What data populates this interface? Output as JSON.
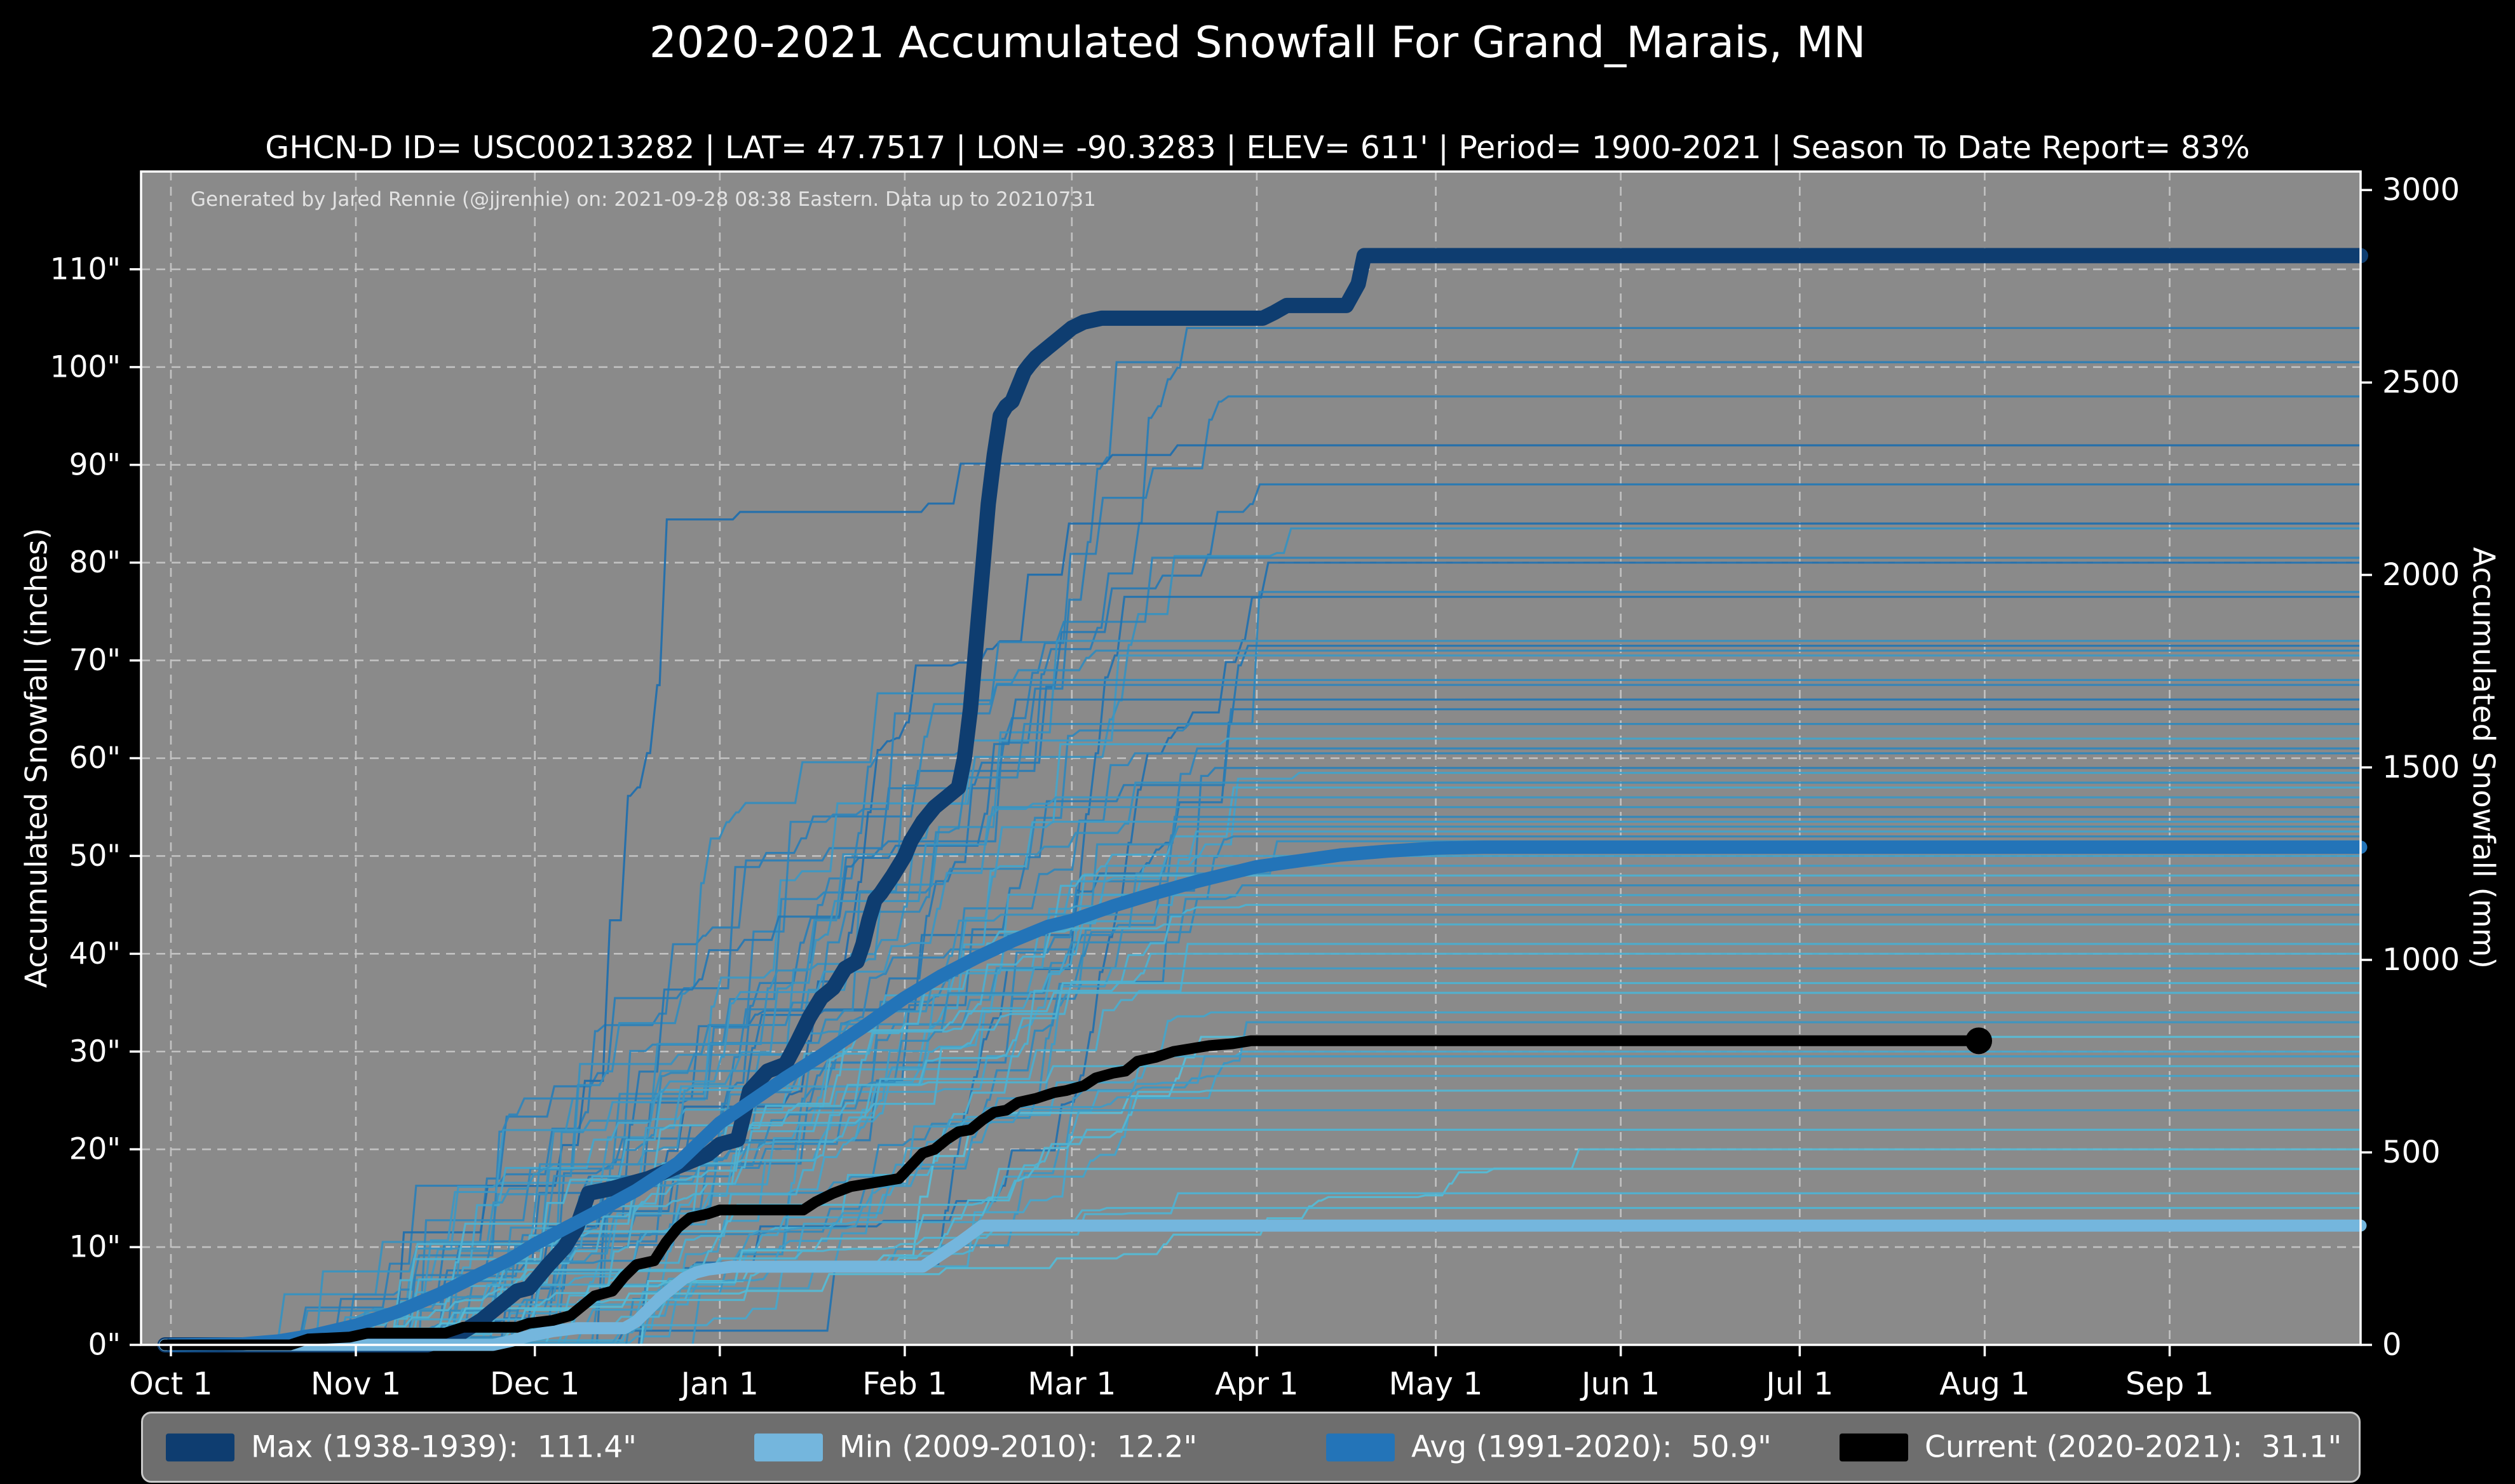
{
  "page": {
    "title": "2020-2021 Accumulated Snowfall For Grand_Marais, MN",
    "subtitle": "GHCN-D ID= USC00213282 | LAT= 47.7517 | LON= -90.3283 | ELEV= 611' | Period= 1900-2021 | Season To Date Report= 83%",
    "annotation": "Generated by Jared Rennie (@jjrennie) on: 2021-09-28 08:38 Eastern. Data up to 20210731"
  },
  "legend": {
    "position": "bottom",
    "items": [
      {
        "key": "max",
        "label": "Max (1938-1939):  111.4\"",
        "color": "#0e3d70"
      },
      {
        "key": "min",
        "label": "Min (2009-2010):  12.2\"",
        "color": "#74b6dd"
      },
      {
        "key": "avg",
        "label": "Avg (1991-2020):  50.9\"",
        "color": "#2374b8"
      },
      {
        "key": "current",
        "label": "Current (2020-2021):  31.1\"",
        "color": "#000000"
      }
    ]
  },
  "chart_data": {
    "type": "line",
    "title": "2020-2021 Accumulated Snowfall For Grand_Marais, MN",
    "xlabel": "",
    "ylabel_left": "Accumulated Snowfall (inches)",
    "ylabel_right": "Accumulated Snowfall (mm)",
    "grid": true,
    "colors": {
      "figure_bg": "#000000",
      "plot_bg": "#8a8a8a",
      "grid": "#c9c9c9",
      "spine": "#ffffff",
      "tick_text": "#ffffff"
    },
    "xlim_days": [
      -5,
      367
    ],
    "ylim_inches": [
      0,
      120
    ],
    "x_ticks": [
      {
        "label": "Oct 1",
        "day": 0
      },
      {
        "label": "Nov 1",
        "day": 31
      },
      {
        "label": "Dec 1",
        "day": 61
      },
      {
        "label": "Jan 1",
        "day": 92
      },
      {
        "label": "Feb 1",
        "day": 123
      },
      {
        "label": "Mar 1",
        "day": 151
      },
      {
        "label": "Apr 1",
        "day": 182
      },
      {
        "label": "May 1",
        "day": 212
      },
      {
        "label": "Jun 1",
        "day": 243
      },
      {
        "label": "Jul 1",
        "day": 273
      },
      {
        "label": "Aug 1",
        "day": 304
      },
      {
        "label": "Sep 1",
        "day": 335
      }
    ],
    "y_ticks_left": [
      {
        "v": 0,
        "label": "0\""
      },
      {
        "v": 10,
        "label": "10\""
      },
      {
        "v": 20,
        "label": "20\""
      },
      {
        "v": 30,
        "label": "30\""
      },
      {
        "v": 40,
        "label": "40\""
      },
      {
        "v": 50,
        "label": "50\""
      },
      {
        "v": 60,
        "label": "60\""
      },
      {
        "v": 70,
        "label": "70\""
      },
      {
        "v": 80,
        "label": "80\""
      },
      {
        "v": 90,
        "label": "90\""
      },
      {
        "v": 100,
        "label": "100\""
      },
      {
        "v": 110,
        "label": "110\""
      }
    ],
    "y_ticks_right": [
      {
        "mm": 0,
        "label": "0"
      },
      {
        "mm": 500,
        "label": "500"
      },
      {
        "mm": 1000,
        "label": "1000"
      },
      {
        "mm": 1500,
        "label": "1500"
      },
      {
        "mm": 2000,
        "label": "2000"
      },
      {
        "mm": 2500,
        "label": "2500"
      },
      {
        "mm": 3000,
        "label": "3000"
      }
    ],
    "series": [
      {
        "name": "Max (1938-1939)",
        "key": "max",
        "final_inches": 111.4,
        "color": "#0e3d70",
        "width": 24,
        "points": [
          [
            -1,
            0
          ],
          [
            43,
            0
          ],
          [
            45,
            0.4
          ],
          [
            48,
            1
          ],
          [
            52,
            2.5
          ],
          [
            55,
            4
          ],
          [
            58,
            5.5
          ],
          [
            60,
            5.8
          ],
          [
            63,
            8
          ],
          [
            66,
            10
          ],
          [
            68,
            12
          ],
          [
            70,
            15.5
          ],
          [
            74,
            16
          ],
          [
            80,
            17
          ],
          [
            86,
            18.5
          ],
          [
            90,
            19.5
          ],
          [
            92,
            20.5
          ],
          [
            95,
            21
          ],
          [
            97,
            26
          ],
          [
            100,
            28
          ],
          [
            103,
            28.7
          ],
          [
            105,
            31
          ],
          [
            107,
            33.5
          ],
          [
            109,
            35.5
          ],
          [
            111,
            36.5
          ],
          [
            113,
            38.5
          ],
          [
            115,
            39.2
          ],
          [
            116,
            41
          ],
          [
            117,
            43.5
          ],
          [
            118,
            45.5
          ],
          [
            119,
            46.2
          ],
          [
            121,
            48
          ],
          [
            123,
            50
          ],
          [
            124,
            51.5
          ],
          [
            126,
            53.5
          ],
          [
            128,
            55
          ],
          [
            130,
            56
          ],
          [
            132,
            57
          ],
          [
            133,
            60
          ],
          [
            134,
            65
          ],
          [
            135,
            72
          ],
          [
            136,
            79
          ],
          [
            137,
            86
          ],
          [
            138,
            91
          ],
          [
            139,
            95
          ],
          [
            140,
            96
          ],
          [
            141,
            96.5
          ],
          [
            142,
            98
          ],
          [
            143,
            99.5
          ],
          [
            144,
            100.3
          ],
          [
            145,
            101
          ],
          [
            147,
            102
          ],
          [
            149,
            103
          ],
          [
            151,
            104
          ],
          [
            153,
            104.6
          ],
          [
            156,
            105
          ],
          [
            183,
            105
          ],
          [
            185,
            105.6
          ],
          [
            187,
            106.3
          ],
          [
            197,
            106.3
          ],
          [
            199,
            108.5
          ],
          [
            200,
            111.4
          ],
          [
            367,
            111.4
          ]
        ]
      },
      {
        "name": "Min (2009-2010)",
        "key": "min",
        "final_inches": 12.2,
        "color": "#74b6dd",
        "width": 19,
        "points": [
          [
            -1,
            0
          ],
          [
            54,
            0
          ],
          [
            57,
            0.4
          ],
          [
            60,
            0.9
          ],
          [
            64,
            1.4
          ],
          [
            68,
            1.7
          ],
          [
            76,
            1.7
          ],
          [
            78,
            2.4
          ],
          [
            80,
            3.6
          ],
          [
            82,
            4.8
          ],
          [
            84,
            5.8
          ],
          [
            86,
            6.8
          ],
          [
            88,
            7.4
          ],
          [
            90,
            7.7
          ],
          [
            94,
            8
          ],
          [
            126,
            8
          ],
          [
            128,
            8.8
          ],
          [
            130,
            9.6
          ],
          [
            132,
            10.4
          ],
          [
            134,
            11.3
          ],
          [
            136,
            12.2
          ],
          [
            367,
            12.2
          ]
        ]
      },
      {
        "name": "Avg (1991-2020)",
        "key": "avg",
        "final_inches": 50.9,
        "color": "#2374b8",
        "width": 21,
        "points": [
          [
            0,
            0
          ],
          [
            12,
            0.1
          ],
          [
            18,
            0.4
          ],
          [
            24,
            1
          ],
          [
            31,
            2
          ],
          [
            38,
            3.4
          ],
          [
            45,
            5.2
          ],
          [
            52,
            7.3
          ],
          [
            57,
            8.8
          ],
          [
            61,
            10.3
          ],
          [
            66,
            11.9
          ],
          [
            72,
            13.8
          ],
          [
            78,
            15.8
          ],
          [
            85,
            18.6
          ],
          [
            92,
            22.7
          ],
          [
            97,
            24.8
          ],
          [
            103,
            27.3
          ],
          [
            109,
            29.6
          ],
          [
            116,
            32.5
          ],
          [
            123,
            35.5
          ],
          [
            129,
            37.7
          ],
          [
            135,
            39.6
          ],
          [
            141,
            41.3
          ],
          [
            147,
            42.8
          ],
          [
            151,
            43.4
          ],
          [
            158,
            44.9
          ],
          [
            165,
            46.2
          ],
          [
            172,
            47.4
          ],
          [
            182,
            48.9
          ],
          [
            189,
            49.5
          ],
          [
            196,
            50.1
          ],
          [
            204,
            50.5
          ],
          [
            212,
            50.8
          ],
          [
            220,
            50.9
          ],
          [
            367,
            50.9
          ]
        ]
      },
      {
        "name": "Current (2020-2021)",
        "key": "current",
        "final_inches": 31.1,
        "color": "#000000",
        "width": 17,
        "end_dot": true,
        "end_dot_radius": 21,
        "points": [
          [
            -1,
            0
          ],
          [
            20,
            0
          ],
          [
            23,
            0.6
          ],
          [
            30,
            0.8
          ],
          [
            33,
            1.2
          ],
          [
            46,
            1.2
          ],
          [
            49,
            1.8
          ],
          [
            58,
            1.8
          ],
          [
            60,
            2.2
          ],
          [
            64,
            2.5
          ],
          [
            67,
            3
          ],
          [
            69,
            4
          ],
          [
            71,
            5
          ],
          [
            74,
            5.5
          ],
          [
            76,
            7
          ],
          [
            78,
            8.2
          ],
          [
            81,
            8.6
          ],
          [
            83,
            10.5
          ],
          [
            85,
            12
          ],
          [
            87,
            13
          ],
          [
            90,
            13.4
          ],
          [
            92,
            13.8
          ],
          [
            106,
            13.8
          ],
          [
            108,
            14.6
          ],
          [
            111,
            15.5
          ],
          [
            114,
            16.2
          ],
          [
            118,
            16.6
          ],
          [
            122,
            17
          ],
          [
            124,
            18.3
          ],
          [
            126,
            19.6
          ],
          [
            128,
            20
          ],
          [
            130,
            21
          ],
          [
            132,
            21.8
          ],
          [
            134,
            22
          ],
          [
            136,
            23
          ],
          [
            138,
            23.8
          ],
          [
            140,
            24
          ],
          [
            142,
            24.8
          ],
          [
            145,
            25.2
          ],
          [
            148,
            25.8
          ],
          [
            150,
            26
          ],
          [
            153,
            26.5
          ],
          [
            155,
            27.3
          ],
          [
            158,
            27.8
          ],
          [
            160,
            28
          ],
          [
            162,
            29
          ],
          [
            165,
            29.4
          ],
          [
            168,
            30
          ],
          [
            171,
            30.3
          ],
          [
            174,
            30.6
          ],
          [
            178,
            30.8
          ],
          [
            181,
            31.1
          ],
          [
            303,
            31.1
          ]
        ]
      }
    ],
    "ensemble": {
      "description": "Thin step lines: one per historical season 1900-2021, colored dark blue to light cyan",
      "seed": 20210928,
      "line_width": 3.2,
      "color_dark": "#1e6bab",
      "color_light": "#5cc3da",
      "final_values_inches": [
        104,
        100.5,
        97,
        92,
        88,
        84,
        83.5,
        80.5,
        80,
        77,
        76.5,
        72,
        71.5,
        71,
        70.5,
        68,
        67.5,
        66,
        65,
        63.5,
        62,
        61,
        60.5,
        59,
        58.5,
        57.5,
        57,
        56,
        55,
        54,
        53.5,
        53,
        52.5,
        52,
        51.5,
        50,
        49,
        48,
        47,
        46,
        45,
        44,
        43,
        41,
        40,
        38.5,
        37,
        36,
        34,
        33,
        31.5,
        30,
        29.5,
        28.5,
        27.5,
        26,
        24,
        22,
        20,
        18,
        15.5,
        14
      ]
    }
  }
}
